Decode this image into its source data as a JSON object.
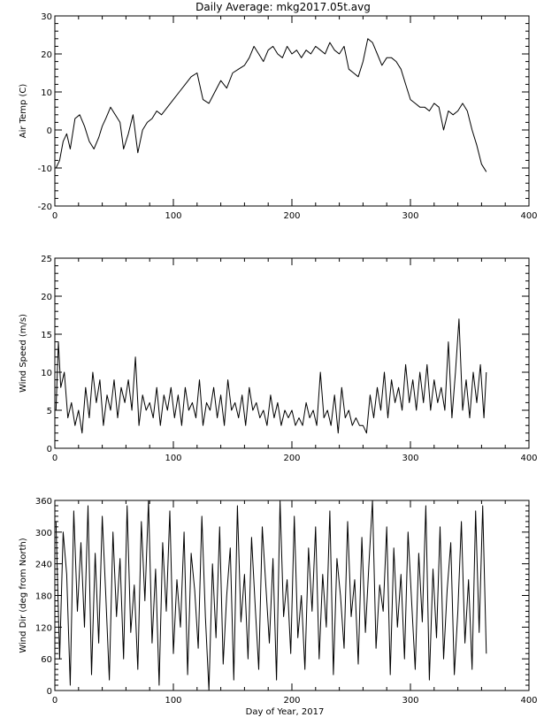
{
  "figure_title": "Daily Average: mkg2017.05t.avg",
  "chart_data": [
    {
      "type": "line",
      "title": "Daily Average: mkg2017.05t.avg",
      "xlabel": "",
      "ylabel": "Air Temp (C)",
      "xlim": [
        0,
        400
      ],
      "ylim": [
        -20,
        30
      ],
      "xticks": [
        0,
        100,
        200,
        300,
        400
      ],
      "yticks": [
        -20,
        -10,
        0,
        10,
        20,
        30
      ],
      "grid": false,
      "series": [
        {
          "x": [
            1,
            4,
            7,
            10,
            13,
            17,
            21,
            25,
            29,
            33,
            37,
            40,
            43,
            47,
            51,
            55,
            58,
            62,
            66,
            70,
            74,
            78,
            82,
            86,
            90,
            95,
            100,
            105,
            110,
            115,
            120,
            125,
            130,
            135,
            140,
            145,
            150,
            155,
            160,
            164,
            168,
            172,
            176,
            180,
            184,
            188,
            192,
            196,
            200,
            204,
            208,
            212,
            216,
            220,
            224,
            228,
            232,
            236,
            240,
            244,
            248,
            252,
            256,
            260,
            264,
            268,
            272,
            276,
            280,
            284,
            288,
            292,
            296,
            300,
            304,
            308,
            312,
            316,
            320,
            324,
            328,
            332,
            336,
            340,
            344,
            348,
            352,
            356,
            360,
            364
          ],
          "y": [
            -10,
            -8,
            -3,
            -1,
            -5,
            3,
            4,
            1,
            -3,
            -5,
            -2,
            1,
            3,
            6,
            4,
            2,
            -5,
            -1,
            4,
            -6,
            0,
            2,
            3,
            5,
            4,
            6,
            8,
            10,
            12,
            14,
            15,
            8,
            7,
            10,
            13,
            11,
            15,
            16,
            17,
            19,
            22,
            20,
            18,
            21,
            22,
            20,
            19,
            22,
            20,
            21,
            19,
            21,
            20,
            22,
            21,
            20,
            23,
            21,
            20,
            22,
            16,
            15,
            14,
            18,
            24,
            23,
            20,
            17,
            19,
            19,
            18,
            16,
            12,
            8,
            7,
            6,
            6,
            5,
            7,
            6,
            0,
            5,
            4,
            5,
            7,
            5,
            0,
            -4,
            -9,
            -11
          ]
        }
      ]
    },
    {
      "type": "line",
      "title": "",
      "xlabel": "",
      "ylabel": "Wind Speed (m/s)",
      "xlim": [
        0,
        400
      ],
      "ylim": [
        0,
        25
      ],
      "xticks": [
        0,
        100,
        200,
        300,
        400
      ],
      "yticks": [
        0,
        5,
        10,
        15,
        20,
        25
      ],
      "grid": false,
      "series": [
        {
          "x": [
            1,
            3,
            5,
            8,
            11,
            14,
            17,
            20,
            23,
            26,
            29,
            32,
            35,
            38,
            41,
            44,
            47,
            50,
            53,
            56,
            59,
            62,
            65,
            68,
            71,
            74,
            77,
            80,
            83,
            86,
            89,
            92,
            95,
            98,
            101,
            104,
            107,
            110,
            113,
            116,
            119,
            122,
            125,
            128,
            131,
            134,
            137,
            140,
            143,
            146,
            149,
            152,
            155,
            158,
            161,
            164,
            167,
            170,
            173,
            176,
            179,
            182,
            185,
            188,
            191,
            194,
            197,
            200,
            203,
            206,
            209,
            212,
            215,
            218,
            221,
            224,
            227,
            230,
            233,
            236,
            239,
            242,
            245,
            248,
            251,
            254,
            257,
            260,
            263,
            266,
            269,
            272,
            275,
            278,
            281,
            284,
            287,
            290,
            293,
            296,
            299,
            302,
            305,
            308,
            311,
            314,
            317,
            320,
            323,
            326,
            329,
            332,
            335,
            338,
            341,
            344,
            347,
            350,
            353,
            356,
            359,
            362,
            364
          ],
          "y": [
            5,
            14,
            8,
            10,
            4,
            6,
            3,
            5,
            2,
            8,
            4,
            10,
            6,
            9,
            3,
            7,
            5,
            9,
            4,
            8,
            6,
            9,
            5,
            12,
            3,
            7,
            5,
            6,
            4,
            8,
            3,
            7,
            5,
            8,
            4,
            7,
            3,
            8,
            5,
            6,
            4,
            9,
            3,
            6,
            5,
            8,
            4,
            7,
            3,
            9,
            5,
            6,
            4,
            7,
            3,
            8,
            5,
            6,
            4,
            5,
            3,
            7,
            4,
            6,
            3,
            5,
            4,
            5,
            3,
            4,
            3,
            6,
            4,
            5,
            3,
            10,
            4,
            5,
            3,
            7,
            2,
            8,
            4,
            5,
            3,
            4,
            3,
            3,
            2,
            7,
            4,
            8,
            5,
            10,
            4,
            9,
            6,
            8,
            5,
            11,
            6,
            9,
            5,
            10,
            6,
            11,
            5,
            9,
            6,
            8,
            5,
            14,
            4,
            10,
            17,
            5,
            9,
            4,
            10,
            6,
            11,
            4,
            10
          ]
        }
      ]
    },
    {
      "type": "line",
      "title": "",
      "xlabel": "Day of Year, 2017",
      "ylabel": "Wind Dir (deg from North)",
      "xlim": [
        0,
        400
      ],
      "ylim": [
        0,
        360
      ],
      "xticks": [
        0,
        100,
        200,
        300,
        400
      ],
      "yticks": [
        0,
        60,
        120,
        180,
        240,
        300,
        360
      ],
      "grid": false,
      "series": [
        {
          "x": [
            1,
            4,
            7,
            10,
            13,
            16,
            19,
            22,
            25,
            28,
            31,
            34,
            37,
            40,
            43,
            46,
            49,
            52,
            55,
            58,
            61,
            64,
            67,
            70,
            73,
            76,
            79,
            82,
            85,
            88,
            91,
            94,
            97,
            100,
            103,
            106,
            109,
            112,
            115,
            118,
            121,
            124,
            127,
            130,
            133,
            136,
            139,
            142,
            145,
            148,
            151,
            154,
            157,
            160,
            163,
            166,
            169,
            172,
            175,
            178,
            181,
            184,
            187,
            190,
            193,
            196,
            199,
            202,
            205,
            208,
            211,
            214,
            217,
            220,
            223,
            226,
            229,
            232,
            235,
            238,
            241,
            244,
            247,
            250,
            253,
            256,
            259,
            262,
            265,
            268,
            271,
            274,
            277,
            280,
            283,
            286,
            289,
            292,
            295,
            298,
            301,
            304,
            307,
            310,
            313,
            316,
            319,
            322,
            325,
            328,
            331,
            334,
            337,
            340,
            343,
            346,
            349,
            352,
            355,
            358,
            361,
            364
          ],
          "y": [
            320,
            60,
            300,
            220,
            10,
            340,
            150,
            280,
            120,
            350,
            30,
            260,
            90,
            330,
            180,
            20,
            300,
            140,
            250,
            60,
            350,
            110,
            200,
            40,
            320,
            170,
            360,
            90,
            230,
            10,
            280,
            150,
            340,
            70,
            210,
            120,
            300,
            30,
            260,
            190,
            80,
            330,
            140,
            0,
            240,
            100,
            310,
            50,
            180,
            270,
            20,
            350,
            130,
            220,
            60,
            290,
            160,
            40,
            310,
            200,
            90,
            250,
            20,
            360,
            140,
            210,
            70,
            330,
            100,
            180,
            40,
            270,
            150,
            310,
            60,
            220,
            120,
            340,
            30,
            250,
            180,
            80,
            320,
            140,
            210,
            50,
            290,
            110,
            240,
            360,
            80,
            200,
            150,
            310,
            30,
            270,
            120,
            220,
            60,
            300,
            170,
            40,
            260,
            130,
            350,
            20,
            230,
            100,
            310,
            60,
            190,
            280,
            30,
            150,
            320,
            90,
            210,
            40,
            340,
            110,
            350,
            70
          ]
        }
      ]
    }
  ]
}
